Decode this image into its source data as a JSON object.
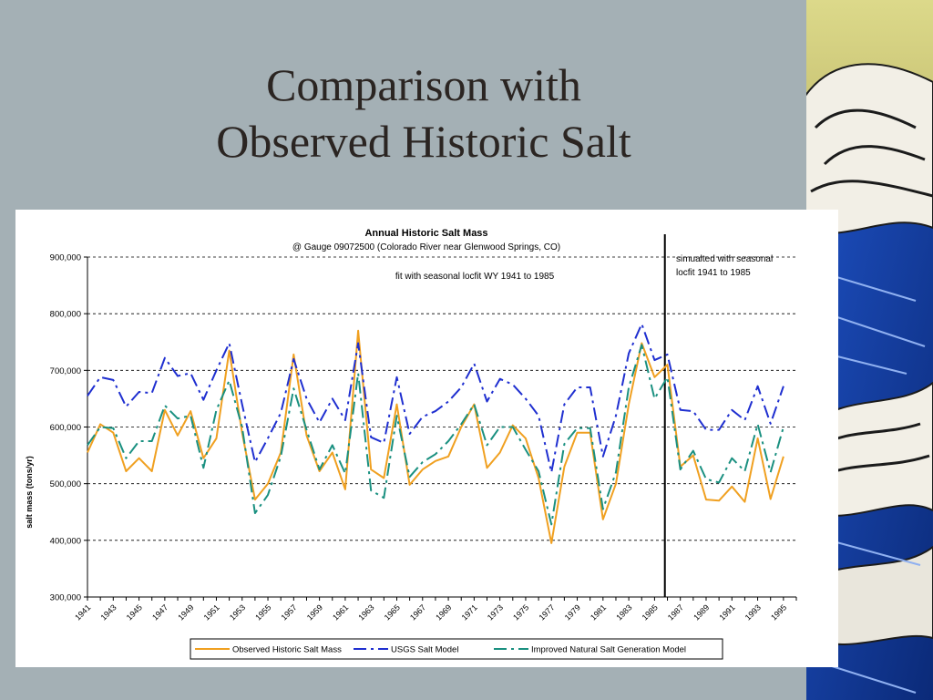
{
  "slide": {
    "title_line1": "Comparison with",
    "title_line2": "Observed Historic Salt"
  },
  "chart_data": {
    "type": "line",
    "title": "Annual Historic Salt Mass",
    "subtitle": "@ Gauge 09072500 (Colorado River near Glenwood Springs, CO)",
    "ylabel": "salt mass (tons/yr)",
    "xlabel": "",
    "ylim": [
      300000,
      900000
    ],
    "yticks": [
      300000,
      400000,
      500000,
      600000,
      700000,
      800000,
      900000
    ],
    "ytick_labels": [
      "300,000",
      "400,000",
      "500,000",
      "600,000",
      "700,000",
      "800,000",
      "900,000"
    ],
    "xlim": [
      1941,
      1996
    ],
    "xtick_labels": [
      "1941",
      "1943",
      "1945",
      "1947",
      "1949",
      "1951",
      "1953",
      "1955",
      "1957",
      "1959",
      "1961",
      "1963",
      "1965",
      "1967",
      "1969",
      "1971",
      "1973",
      "1975",
      "1977",
      "1979",
      "1981",
      "1983",
      "1985",
      "1987",
      "1989",
      "1991",
      "1993",
      "1995"
    ],
    "grid": "horizontal dashed",
    "legend": "bottom",
    "annotations": [
      {
        "text": "fit with seasonal locfit WY 1941 to 1985"
      },
      {
        "text": "simualted with seasonal"
      },
      {
        "text": "locfit 1941 to 1985"
      }
    ],
    "divider_year": 1985.8,
    "x": [
      1941,
      1942,
      1943,
      1944,
      1945,
      1946,
      1947,
      1948,
      1949,
      1950,
      1951,
      1952,
      1953,
      1954,
      1955,
      1956,
      1957,
      1958,
      1959,
      1960,
      1961,
      1962,
      1963,
      1964,
      1965,
      1966,
      1967,
      1968,
      1969,
      1970,
      1971,
      1972,
      1973,
      1974,
      1975,
      1976,
      1977,
      1978,
      1979,
      1980,
      1981,
      1982,
      1983,
      1984,
      1985,
      1986,
      1987,
      1988,
      1989,
      1990,
      1991,
      1992,
      1993,
      1994,
      1995,
      1996
    ],
    "series": [
      {
        "name": "Observed Historic Salt Mass",
        "color": "#f0a020",
        "dash": "solid",
        "values": [
          555000,
          605000,
          590000,
          522000,
          545000,
          522000,
          630000,
          585000,
          628000,
          545000,
          580000,
          735000,
          590000,
          472000,
          500000,
          555000,
          728000,
          585000,
          522000,
          555000,
          490000,
          770000,
          525000,
          510000,
          640000,
          498000,
          525000,
          540000,
          548000,
          600000,
          640000,
          528000,
          555000,
          603000,
          580000,
          510000,
          395000,
          530000,
          590000,
          590000,
          437000,
          500000,
          640000,
          748000,
          688000,
          710000,
          530000,
          550000,
          472000,
          470000,
          495000,
          468000,
          580000,
          473000,
          548000,
          null
        ]
      },
      {
        "name": "USGS Salt Model",
        "color": "#1f2fd0",
        "dash": "14,5,3,5",
        "values": [
          655000,
          688000,
          683000,
          636000,
          662000,
          660000,
          722000,
          690000,
          695000,
          648000,
          700000,
          748000,
          640000,
          538000,
          580000,
          625000,
          720000,
          650000,
          608000,
          650000,
          612000,
          748000,
          582000,
          572000,
          688000,
          588000,
          618000,
          628000,
          645000,
          670000,
          712000,
          645000,
          685000,
          675000,
          650000,
          620000,
          520000,
          640000,
          670000,
          670000,
          548000,
          620000,
          730000,
          782000,
          718000,
          728000,
          630000,
          628000,
          595000,
          595000,
          630000,
          612000,
          672000,
          606000,
          672000,
          null
        ]
      },
      {
        "name": "Improved Natural Salt Generation Model",
        "color": "#1a9080",
        "dash": "14,5,3,5",
        "values": [
          568000,
          600000,
          598000,
          545000,
          575000,
          575000,
          638000,
          615000,
          620000,
          528000,
          630000,
          682000,
          600000,
          448000,
          480000,
          548000,
          668000,
          595000,
          525000,
          568000,
          518000,
          695000,
          488000,
          475000,
          620000,
          512000,
          538000,
          552000,
          575000,
          605000,
          640000,
          568000,
          600000,
          600000,
          560000,
          522000,
          428000,
          570000,
          598000,
          598000,
          455000,
          520000,
          670000,
          745000,
          650000,
          688000,
          525000,
          558000,
          508000,
          502000,
          545000,
          522000,
          605000,
          520000,
          600000,
          null
        ]
      }
    ]
  }
}
